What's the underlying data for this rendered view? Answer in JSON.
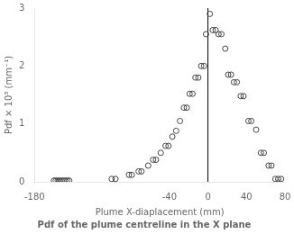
{
  "chart_data": {
    "type": "scatter",
    "x_label": "Plume X-diaplacement (mm)",
    "y_label": "Pdf × 10³ (mm⁻¹)",
    "caption": "Pdf of the plume centreline in the X plane",
    "x": [
      -160,
      -158,
      -156,
      -154,
      -152,
      -150,
      -148,
      -146,
      -144,
      -100,
      -96,
      -82,
      -79,
      -72,
      -69,
      -62,
      -57,
      -54,
      -49,
      -44,
      -41,
      -37,
      -33,
      -29,
      -25,
      -22,
      -19,
      -16,
      -13,
      -10,
      -7,
      -4,
      -2,
      2,
      5,
      8,
      11,
      14,
      18,
      21,
      24,
      27,
      30,
      34,
      37,
      42,
      45,
      50,
      55,
      58,
      63,
      66,
      70,
      73,
      76
    ],
    "values": [
      0.02,
      0.02,
      0.02,
      0.02,
      0.02,
      0.02,
      0.02,
      0.02,
      0.02,
      0.05,
      0.05,
      0.12,
      0.12,
      0.18,
      0.18,
      0.28,
      0.38,
      0.38,
      0.5,
      0.62,
      0.62,
      0.78,
      0.88,
      1.05,
      1.28,
      1.28,
      1.52,
      1.52,
      1.8,
      1.8,
      2.0,
      2.0,
      2.55,
      2.9,
      2.62,
      2.62,
      2.55,
      2.55,
      2.3,
      1.85,
      1.85,
      1.72,
      1.72,
      1.48,
      1.48,
      1.05,
      1.05,
      0.9,
      0.5,
      0.5,
      0.28,
      0.28,
      0.05,
      0.05,
      0.05
    ],
    "color": "#444444",
    "marker": "circle",
    "vline": {
      "x": 0,
      "color": "#000000"
    },
    "xlim": [
      -180,
      80
    ],
    "ylim": [
      0,
      3
    ],
    "xticks": [
      -180,
      -40,
      0,
      40,
      80
    ],
    "yticks": [
      0,
      1,
      2,
      3
    ],
    "grid": false
  }
}
